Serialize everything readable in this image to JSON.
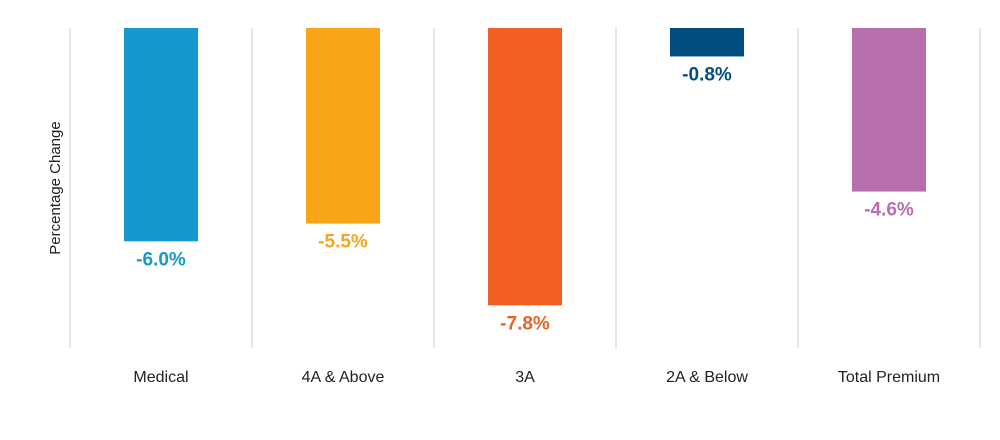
{
  "chart_data": {
    "type": "bar",
    "ylabel": "Percentage Change",
    "categories": [
      "Medical",
      "4A & Above",
      "3A",
      "2A & Below",
      "Total Premium"
    ],
    "values": [
      -6.0,
      -5.5,
      -7.8,
      -0.8,
      -4.6
    ],
    "data_labels": [
      "-6.0%",
      "-5.5%",
      "-7.8%",
      "-0.8%",
      "-4.6%"
    ],
    "colors": [
      "#1598CD",
      "#F9A51A",
      "#F15E22",
      "#004F80",
      "#B76EAC"
    ],
    "ylim": [
      -9,
      0
    ],
    "grid": "vertical category separators",
    "legend": "none"
  }
}
